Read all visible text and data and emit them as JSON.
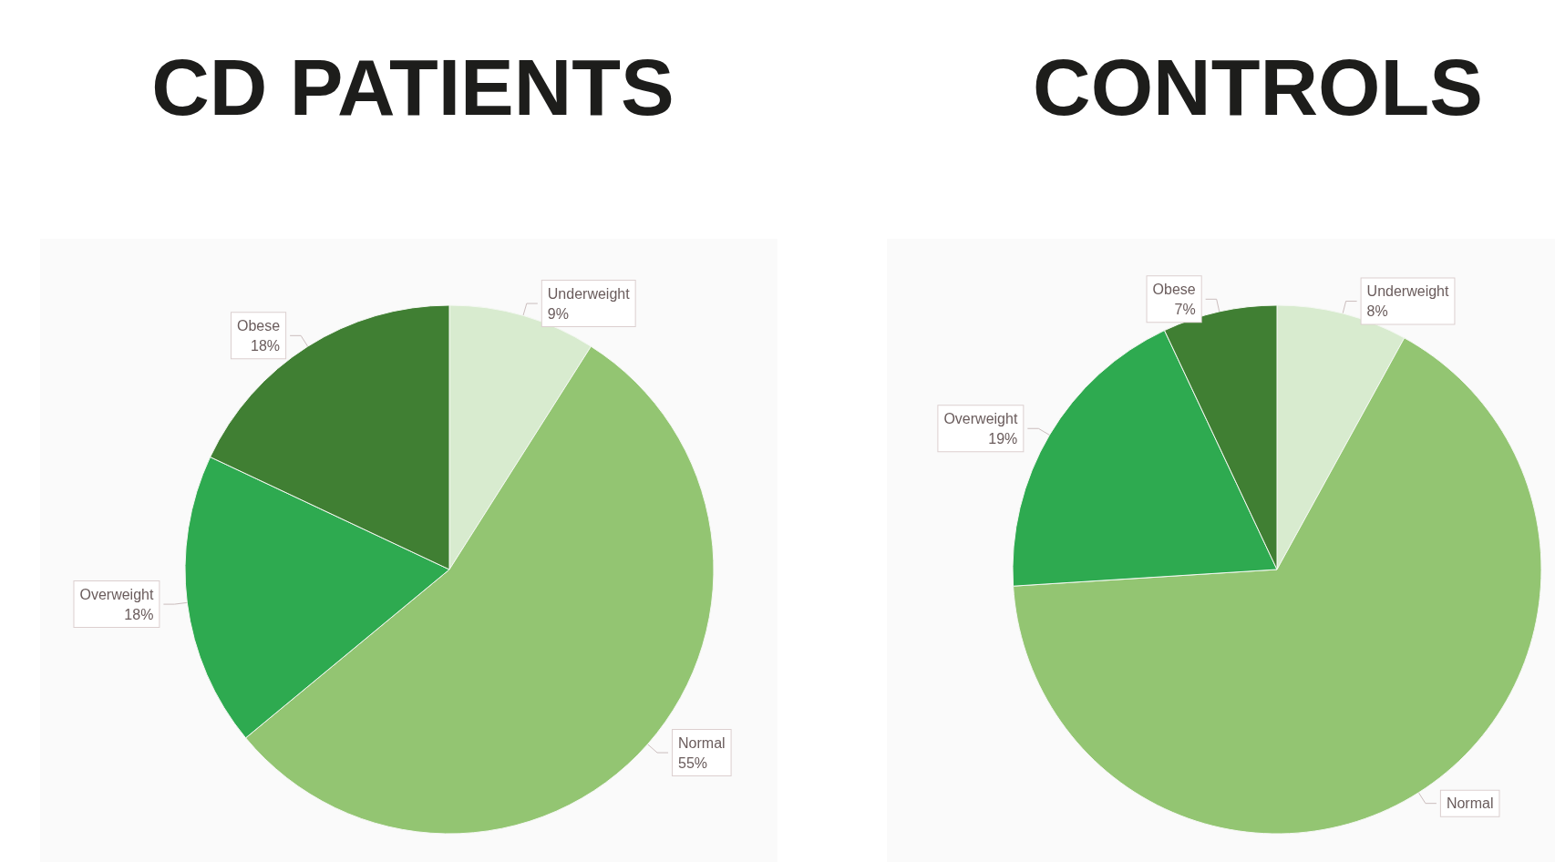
{
  "chart_data": [
    {
      "type": "pie",
      "title": "CD PATIENTS",
      "categories": [
        "Underweight",
        "Normal",
        "Overweight",
        "Obese"
      ],
      "values": [
        9,
        55,
        18,
        18
      ],
      "value_labels": [
        "9%",
        "55%",
        "18%",
        "18%"
      ],
      "colors": [
        "#d8ebcf",
        "#93c572",
        "#2eaa50",
        "#407f33"
      ]
    },
    {
      "type": "pie",
      "title": "CONTROLS",
      "categories": [
        "Underweight",
        "Normal",
        "Overweight",
        "Obese"
      ],
      "values": [
        8,
        66,
        19,
        7
      ],
      "value_labels": [
        "8%",
        null,
        "19%",
        "7%"
      ],
      "colors": [
        "#d8ebcf",
        "#93c572",
        "#2eaa50",
        "#407f33"
      ]
    }
  ]
}
